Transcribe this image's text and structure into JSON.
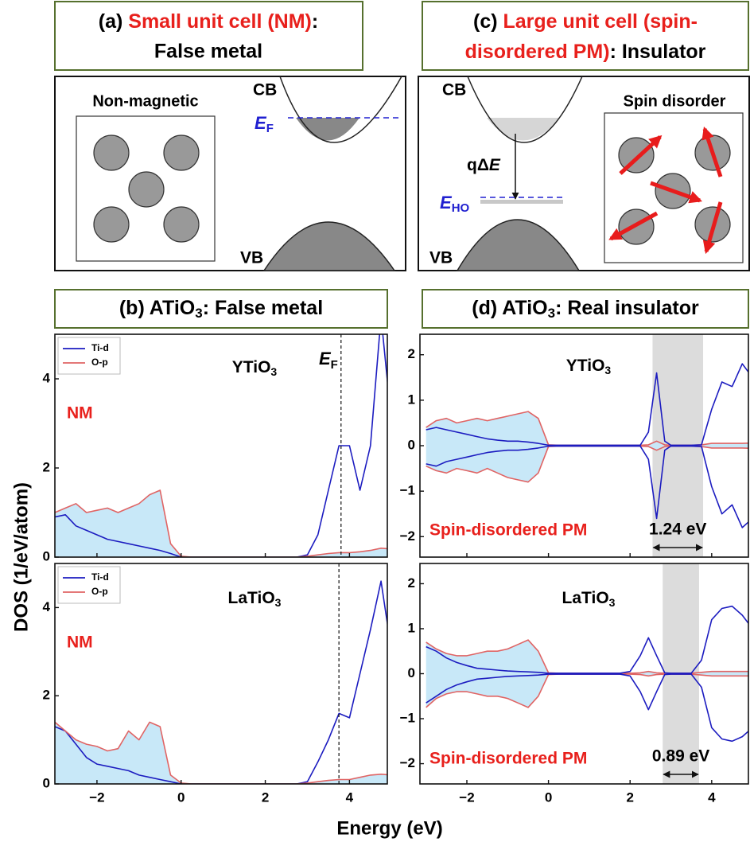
{
  "panels": {
    "a": {
      "title": [
        "(a) ",
        "Small unit cell (NM)",
        ":",
        "False metal"
      ],
      "diagram": {
        "inset_label": "Non-magnetic",
        "cb": "CB",
        "vb": "VB",
        "ef": [
          "E",
          "F"
        ]
      }
    },
    "c": {
      "title": [
        "(c) ",
        "Large unit cell (spin-",
        "disordered PM)",
        ": Insulator"
      ],
      "diagram": {
        "cb": "CB",
        "vb": "VB",
        "gap": [
          "qΔ",
          "E"
        ],
        "eho": [
          "E",
          "HO"
        ],
        "inset_label": "Spin disorder"
      }
    },
    "b": {
      "title": [
        "(b) ATiO",
        "3",
        ": False metal"
      ]
    },
    "d": {
      "title": [
        "(d) ATiO",
        "3",
        ": Real insulator"
      ]
    }
  },
  "y_label": "DOS (1/eV/atom)",
  "x_label": "Energy (eV)",
  "chart_data": [
    {
      "type": "line",
      "label": [
        "YTiO",
        "3"
      ],
      "note": "NM",
      "x": [
        -3,
        -2.75,
        -2.5,
        -2.25,
        -2,
        -1.75,
        -1.5,
        -1.25,
        -1,
        -0.75,
        -0.5,
        -0.25,
        0,
        0.25,
        0.5,
        0.75,
        1,
        1.25,
        1.5,
        1.75,
        2,
        2.25,
        2.5,
        2.75,
        3,
        3.25,
        3.5,
        3.75,
        4,
        4.25,
        4.5,
        4.75,
        5
      ],
      "series": [
        {
          "name": "Ti-d",
          "color": "#1c1cc0",
          "values": [
            0.9,
            0.95,
            0.7,
            0.6,
            0.5,
            0.4,
            0.35,
            0.3,
            0.25,
            0.2,
            0.15,
            0.08,
            0,
            0,
            0,
            0,
            0,
            0,
            0,
            0,
            0,
            0,
            0,
            0,
            0.05,
            0.5,
            1.5,
            2.5,
            2.5,
            1.5,
            2.5,
            5.4,
            3
          ]
        },
        {
          "name": "O-p",
          "color": "#e06464",
          "fill": "#c8e8f8",
          "values": [
            1.0,
            1.1,
            1.2,
            1.0,
            1.05,
            1.1,
            1.0,
            1.1,
            1.2,
            1.4,
            1.5,
            0.3,
            0.02,
            0,
            0,
            0,
            0,
            0,
            0,
            0,
            0,
            0,
            0,
            0,
            0.02,
            0.05,
            0.08,
            0.1,
            0.1,
            0.12,
            0.15,
            0.2,
            0.18
          ]
        }
      ],
      "xlim": [
        -3,
        4.9
      ],
      "ylim": [
        0,
        5
      ],
      "xticks": [
        {
          "value": -2,
          "label": "−2"
        },
        0,
        2,
        4
      ],
      "yticks": [
        0,
        2,
        4
      ],
      "x_tick_labels": false,
      "legend": "upper left",
      "vline": 3.8,
      "vline_label": [
        "E",
        "F"
      ]
    },
    {
      "type": "line",
      "label": [
        "LaTiO",
        "3"
      ],
      "note": "NM",
      "x": [
        -3,
        -2.75,
        -2.5,
        -2.25,
        -2,
        -1.75,
        -1.5,
        -1.25,
        -1,
        -0.75,
        -0.5,
        -0.25,
        0,
        0.25,
        0.5,
        0.75,
        1,
        1.25,
        1.5,
        1.75,
        2,
        2.25,
        2.5,
        2.75,
        3,
        3.25,
        3.5,
        3.75,
        4,
        4.25,
        4.5,
        4.75,
        5
      ],
      "series": [
        {
          "name": "Ti-d",
          "color": "#1c1cc0",
          "values": [
            1.3,
            1.2,
            0.9,
            0.6,
            0.45,
            0.4,
            0.35,
            0.3,
            0.2,
            0.15,
            0.1,
            0.05,
            0,
            0,
            0,
            0,
            0,
            0,
            0,
            0,
            0,
            0,
            0,
            0,
            0.05,
            0.5,
            1.0,
            1.6,
            1.5,
            2.5,
            3.5,
            4.6,
            3.0
          ]
        },
        {
          "name": "O-p",
          "color": "#e06464",
          "fill": "#c8e8f8",
          "values": [
            1.4,
            1.2,
            1.0,
            0.9,
            0.85,
            0.75,
            0.8,
            1.2,
            1.0,
            1.4,
            1.3,
            0.2,
            0.02,
            0,
            0,
            0,
            0,
            0,
            0,
            0,
            0,
            0,
            0,
            0,
            0.02,
            0.05,
            0.08,
            0.1,
            0.1,
            0.15,
            0.2,
            0.22,
            0.2
          ]
        }
      ],
      "xlim": [
        -3,
        4.9
      ],
      "ylim": [
        0,
        5
      ],
      "xticks": [
        {
          "value": -2,
          "label": "−2"
        },
        0,
        2,
        4
      ],
      "yticks": [
        0,
        2,
        4
      ],
      "x_tick_labels": true,
      "legend": "upper left",
      "vline": 3.75
    },
    {
      "type": "line",
      "label": [
        "YTiO",
        "3"
      ],
      "note": "Spin-disordered PM",
      "x": [
        -3,
        -2.75,
        -2.5,
        -2.25,
        -2,
        -1.75,
        -1.5,
        -1.25,
        -1,
        -0.75,
        -0.5,
        -0.25,
        0,
        0.25,
        0.5,
        0.75,
        1,
        1.25,
        1.5,
        1.75,
        2,
        2.25,
        2.45,
        2.65,
        2.85,
        3,
        3.25,
        3.5,
        3.75,
        4,
        4.25,
        4.5,
        4.75,
        5
      ],
      "series": [
        {
          "color": "#e06464",
          "fill": "#c8e8f8",
          "values": [
            0.4,
            0.55,
            0.6,
            0.5,
            0.55,
            0.6,
            0.55,
            0.6,
            0.65,
            0.7,
            0.75,
            0.6,
            0.02,
            0.01,
            0.01,
            0.01,
            0.01,
            0.01,
            0.01,
            0.01,
            0.01,
            0.01,
            0.02,
            0.1,
            0.02,
            0.01,
            0.01,
            0.01,
            0.02,
            0.05,
            0.05,
            0.05,
            0.05,
            0.06
          ]
        },
        {
          "color": "#e06464",
          "fill": "#c8e8f8",
          "values": [
            -0.45,
            -0.55,
            -0.6,
            -0.5,
            -0.55,
            -0.6,
            -0.5,
            -0.6,
            -0.7,
            -0.75,
            -0.8,
            -0.6,
            -0.02,
            -0.01,
            -0.01,
            -0.01,
            -0.01,
            -0.01,
            -0.01,
            -0.01,
            -0.01,
            -0.01,
            -0.02,
            -0.1,
            -0.02,
            -0.01,
            -0.01,
            -0.01,
            -0.02,
            -0.05,
            -0.05,
            -0.05,
            -0.05,
            -0.06
          ]
        },
        {
          "color": "#1c1cc0",
          "values": [
            0.35,
            0.4,
            0.35,
            0.3,
            0.25,
            0.2,
            0.15,
            0.12,
            0.1,
            0.1,
            0.08,
            0.05,
            0.01,
            0.01,
            0.01,
            0.01,
            0.01,
            0.01,
            0.01,
            0.01,
            0.01,
            0.01,
            0.3,
            1.6,
            0.1,
            0.01,
            0.01,
            0.01,
            0.02,
            0.8,
            1.4,
            1.3,
            1.8,
            1.5
          ]
        },
        {
          "color": "#1c1cc0",
          "values": [
            -0.4,
            -0.45,
            -0.35,
            -0.3,
            -0.25,
            -0.2,
            -0.15,
            -0.12,
            -0.1,
            -0.1,
            -0.08,
            -0.05,
            -0.01,
            -0.01,
            -0.01,
            -0.01,
            -0.01,
            -0.01,
            -0.01,
            -0.01,
            -0.01,
            -0.01,
            -0.3,
            -1.6,
            -0.1,
            -0.01,
            -0.01,
            -0.01,
            -0.02,
            -0.9,
            -1.5,
            -1.3,
            -1.8,
            -1.6
          ]
        }
      ],
      "xlim": [
        -3.15,
        4.9
      ],
      "ylim": [
        -2.45,
        2.45
      ],
      "xticks": [
        {
          "value": -2,
          "label": "−2"
        },
        0,
        2,
        4
      ],
      "yticks": [
        {
          "value": -2,
          "label": "−2"
        },
        {
          "value": -1,
          "label": "−1"
        },
        0,
        1,
        2
      ],
      "x_tick_labels": false,
      "band": [
        2.55,
        3.79
      ],
      "band_color": "#dcdcdc",
      "band_label": "1.24 eV"
    },
    {
      "type": "line",
      "label": [
        "LaTiO",
        "3"
      ],
      "note": "Spin-disordered PM",
      "x": [
        -3,
        -2.75,
        -2.5,
        -2.25,
        -2,
        -1.75,
        -1.5,
        -1.25,
        -1,
        -0.75,
        -0.5,
        -0.25,
        0,
        0.25,
        0.5,
        0.75,
        1,
        1.25,
        1.5,
        1.75,
        2,
        2.25,
        2.45,
        2.65,
        2.85,
        3,
        3.25,
        3.5,
        3.75,
        4,
        4.25,
        4.5,
        4.75,
        5
      ],
      "series": [
        {
          "color": "#e06464",
          "fill": "#c8e8f8",
          "values": [
            0.7,
            0.55,
            0.45,
            0.4,
            0.4,
            0.45,
            0.5,
            0.5,
            0.55,
            0.65,
            0.75,
            0.5,
            0.02,
            0.01,
            0.01,
            0.01,
            0.01,
            0.01,
            0.01,
            0.01,
            0.01,
            0.02,
            0.05,
            0.02,
            0.01,
            0.01,
            0.01,
            0.01,
            0.03,
            0.05,
            0.05,
            0.05,
            0.05,
            0.05
          ]
        },
        {
          "color": "#e06464",
          "fill": "#c8e8f8",
          "values": [
            -0.75,
            -0.55,
            -0.45,
            -0.4,
            -0.4,
            -0.45,
            -0.5,
            -0.5,
            -0.55,
            -0.65,
            -0.75,
            -0.5,
            -0.02,
            -0.01,
            -0.01,
            -0.01,
            -0.01,
            -0.01,
            -0.01,
            -0.01,
            -0.01,
            -0.02,
            -0.05,
            -0.02,
            -0.01,
            -0.01,
            -0.01,
            -0.01,
            -0.03,
            -0.05,
            -0.05,
            -0.05,
            -0.05,
            -0.05
          ]
        },
        {
          "color": "#1c1cc0",
          "values": [
            0.6,
            0.5,
            0.35,
            0.25,
            0.18,
            0.12,
            0.1,
            0.08,
            0.06,
            0.05,
            0.04,
            0.03,
            0.01,
            0.01,
            0.01,
            0.01,
            0.01,
            0.01,
            0.01,
            0.01,
            0.05,
            0.4,
            0.8,
            0.4,
            0.02,
            0.01,
            0.01,
            0.01,
            0.3,
            1.2,
            1.45,
            1.5,
            1.3,
            1.0
          ]
        },
        {
          "color": "#1c1cc0",
          "values": [
            -0.65,
            -0.5,
            -0.35,
            -0.25,
            -0.18,
            -0.12,
            -0.1,
            -0.08,
            -0.06,
            -0.05,
            -0.04,
            -0.03,
            -0.01,
            -0.01,
            -0.01,
            -0.01,
            -0.01,
            -0.01,
            -0.01,
            -0.01,
            -0.05,
            -0.4,
            -0.8,
            -0.4,
            -0.02,
            -0.01,
            -0.01,
            -0.01,
            -0.3,
            -1.2,
            -1.45,
            -1.5,
            -1.4,
            -1.2
          ]
        }
      ],
      "xlim": [
        -3.15,
        4.9
      ],
      "ylim": [
        -2.45,
        2.45
      ],
      "xticks": [
        {
          "value": -2,
          "label": "−2"
        },
        0,
        2,
        4
      ],
      "yticks": [
        {
          "value": -2,
          "label": "−2"
        },
        {
          "value": -1,
          "label": "−1"
        },
        0,
        1,
        2
      ],
      "x_tick_labels": true,
      "band": [
        2.8,
        3.69
      ],
      "band_color": "#dcdcdc",
      "band_label": "0.89 eV"
    }
  ]
}
